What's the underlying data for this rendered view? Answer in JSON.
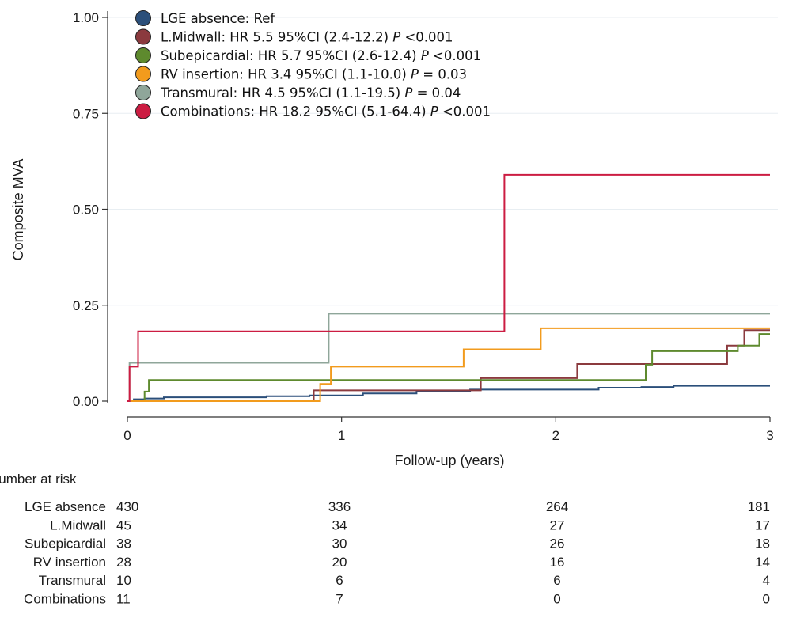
{
  "chart_data": {
    "type": "line",
    "step": true,
    "xlabel": "Follow-up (years)",
    "ylabel": "Composite MVA",
    "xlim": [
      0,
      3
    ],
    "ylim": [
      0,
      1
    ],
    "x_ticks": [
      "0",
      "1",
      "2",
      "3"
    ],
    "y_ticks": [
      "0.00",
      "0.25",
      "0.50",
      "0.75",
      "1.00"
    ],
    "grid": "horizontal",
    "legend_position": "top-left",
    "series": [
      {
        "name": "LGE absence: Ref",
        "label": "LGE absence: Ref",
        "color": "#2b4f7a",
        "points": [
          [
            0,
            0
          ],
          [
            0.03,
            0.005
          ],
          [
            0.08,
            0.007
          ],
          [
            0.17,
            0.01
          ],
          [
            0.65,
            0.013
          ],
          [
            0.85,
            0.015
          ],
          [
            1.1,
            0.02
          ],
          [
            1.35,
            0.025
          ],
          [
            1.6,
            0.03
          ],
          [
            2.2,
            0.035
          ],
          [
            2.4,
            0.037
          ],
          [
            2.55,
            0.04
          ],
          [
            3.0,
            0.04
          ]
        ]
      },
      {
        "name": "L.Midwall: HR 5.5 95%CI (2.4-12.2) P <0.001",
        "label": "L.Midwall: HR 5.5 95%CI (2.4-12.2) ",
        "p": "<0.001",
        "color": "#8b3a3e",
        "points": [
          [
            0,
            0
          ],
          [
            0.87,
            0.028
          ],
          [
            1.65,
            0.06
          ],
          [
            2.1,
            0.097
          ],
          [
            2.8,
            0.145
          ],
          [
            2.88,
            0.185
          ],
          [
            3.0,
            0.185
          ]
        ]
      },
      {
        "name": "Subepicardial: HR 5.7 95%CI (2.6-12.4) P <0.001",
        "label": "Subepicardial: HR 5.7 95%CI (2.6-12.4) ",
        "p": "<0.001",
        "color": "#5e8a2e",
        "points": [
          [
            0,
            0
          ],
          [
            0.08,
            0.025
          ],
          [
            0.1,
            0.055
          ],
          [
            1.65,
            0.055
          ],
          [
            2.42,
            0.095
          ],
          [
            2.45,
            0.13
          ],
          [
            2.85,
            0.145
          ],
          [
            2.95,
            0.175
          ],
          [
            3.0,
            0.175
          ]
        ]
      },
      {
        "name": "RV insertion: HR 3.4 95%CI (1.1-10.0) P = 0.03",
        "label": "RV insertion: HR 3.4 95%CI (1.1-10.0) ",
        "p": "= 0.03",
        "color": "#f29b1d",
        "points": [
          [
            0,
            0
          ],
          [
            0.86,
            0
          ],
          [
            0.9,
            0.045
          ],
          [
            0.95,
            0.09
          ],
          [
            1.55,
            0.09
          ],
          [
            1.57,
            0.135
          ],
          [
            1.92,
            0.135
          ],
          [
            1.93,
            0.19
          ],
          [
            3.0,
            0.19
          ]
        ]
      },
      {
        "name": "Transmural: HR 4.5 95%CI (1.1-19.5) P = 0.04",
        "label": "Transmural: HR 4.5 95%CI (1.1-19.5) ",
        "p": "= 0.04",
        "color": "#8fa69a",
        "points": [
          [
            0,
            0
          ],
          [
            0.01,
            0.1
          ],
          [
            0.94,
            0.1
          ],
          [
            0.94,
            0.228
          ],
          [
            3.0,
            0.228
          ]
        ]
      },
      {
        "name": "Combinations: HR 18.2 95%CI (5.1-64.4) P <0.001",
        "label": "Combinations: HR 18.2 95%CI (5.1-64.4) ",
        "p": " <0.001",
        "color": "#cc1c42",
        "points": [
          [
            0,
            0
          ],
          [
            0.01,
            0.09
          ],
          [
            0.05,
            0.182
          ],
          [
            1.76,
            0.182
          ],
          [
            1.76,
            0.59
          ],
          [
            3.0,
            0.59
          ]
        ]
      }
    ],
    "risk_table": {
      "title": "Number at risk",
      "times": [
        0,
        1,
        2,
        3
      ],
      "rows": [
        {
          "label": "LGE absence",
          "values": [
            "430",
            "336",
            "264",
            "181"
          ]
        },
        {
          "label": "L.Midwall",
          "values": [
            "45",
            "34",
            "27",
            "17"
          ]
        },
        {
          "label": "Subepicardial",
          "values": [
            "38",
            "30",
            "26",
            "18"
          ]
        },
        {
          "label": "RV insertion",
          "values": [
            "28",
            "20",
            "16",
            "14"
          ]
        },
        {
          "label": "Transmural",
          "values": [
            "10",
            "6",
            "6",
            "4"
          ]
        },
        {
          "label": "Combinations",
          "values": [
            "11",
            "7",
            "0",
            "0"
          ]
        }
      ]
    }
  }
}
